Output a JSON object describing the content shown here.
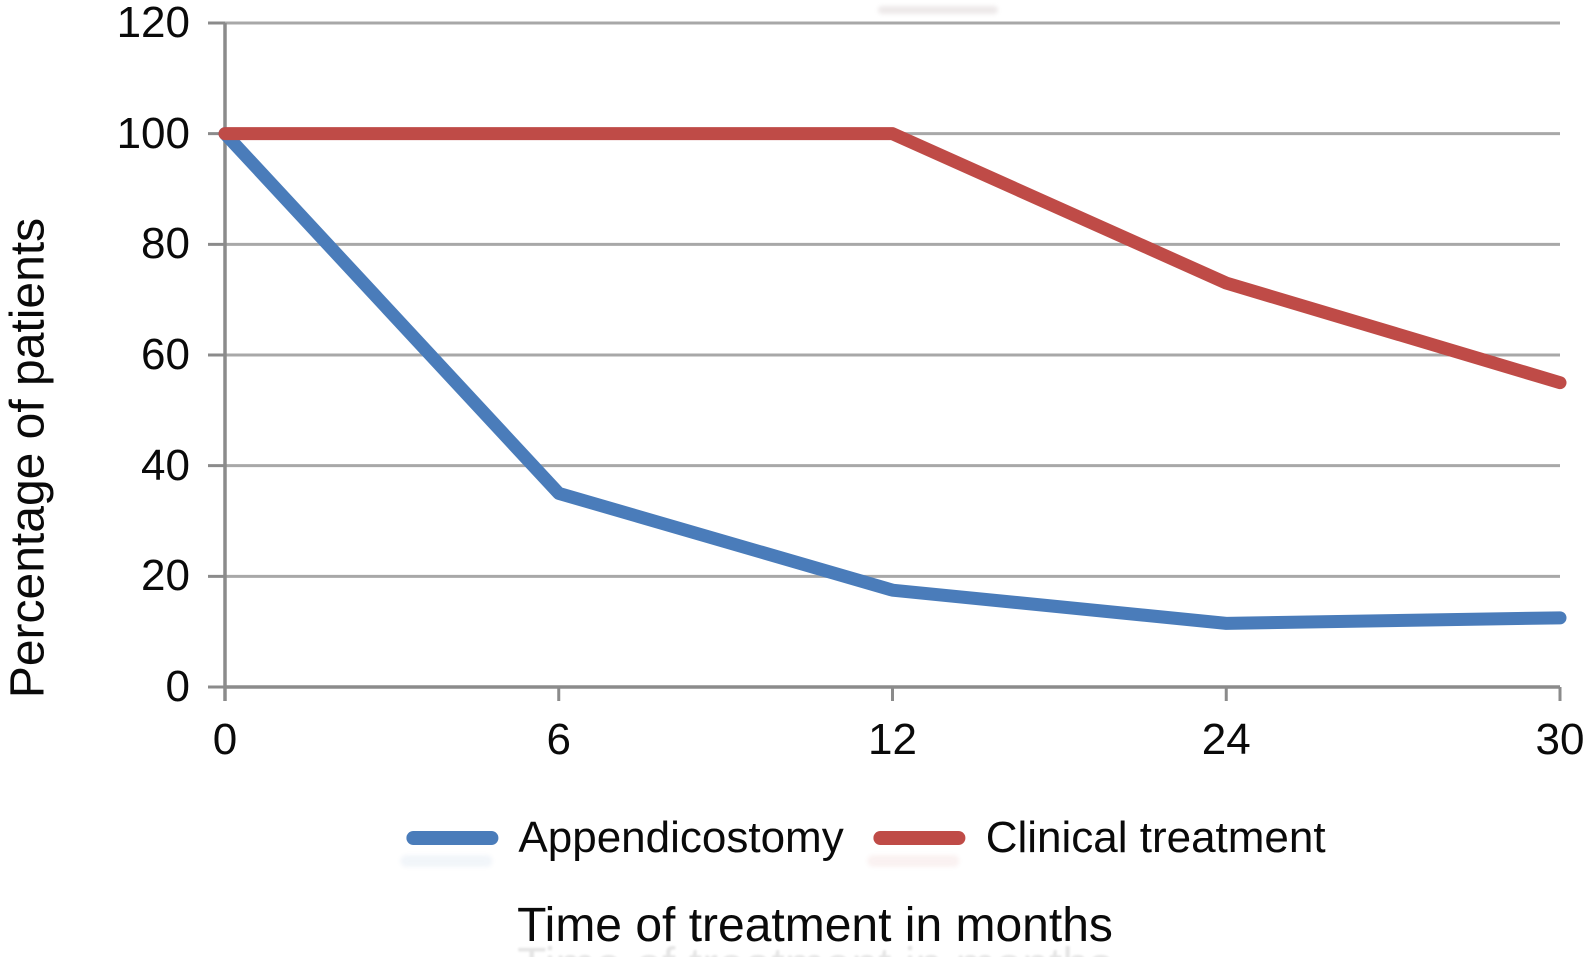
{
  "chart_data": {
    "type": "line",
    "title": "",
    "xlabel": "Time of treatment in months",
    "ylabel": "Percentage of patients",
    "x_categories": [
      "0",
      "6",
      "12",
      "24",
      "30"
    ],
    "y_ticks": [
      0,
      20,
      40,
      60,
      80,
      100,
      120
    ],
    "ylim": [
      0,
      120
    ],
    "grid": "horizontal gridlines at every y tick",
    "legend_position": "bottom-center",
    "series": [
      {
        "name": "Appendicostomy",
        "color": "#4A7CBA",
        "values": [
          100,
          35,
          17.5,
          11.5,
          12.5
        ]
      },
      {
        "name": "Clinical treatment",
        "color": "#BF4B47",
        "values": [
          100,
          100,
          100,
          73,
          55
        ]
      }
    ],
    "colors": {
      "gridline": "#A8A8A8",
      "axis": "#8B8B8B",
      "text": "#0A0A0A",
      "background": "#FFFFFF"
    }
  }
}
